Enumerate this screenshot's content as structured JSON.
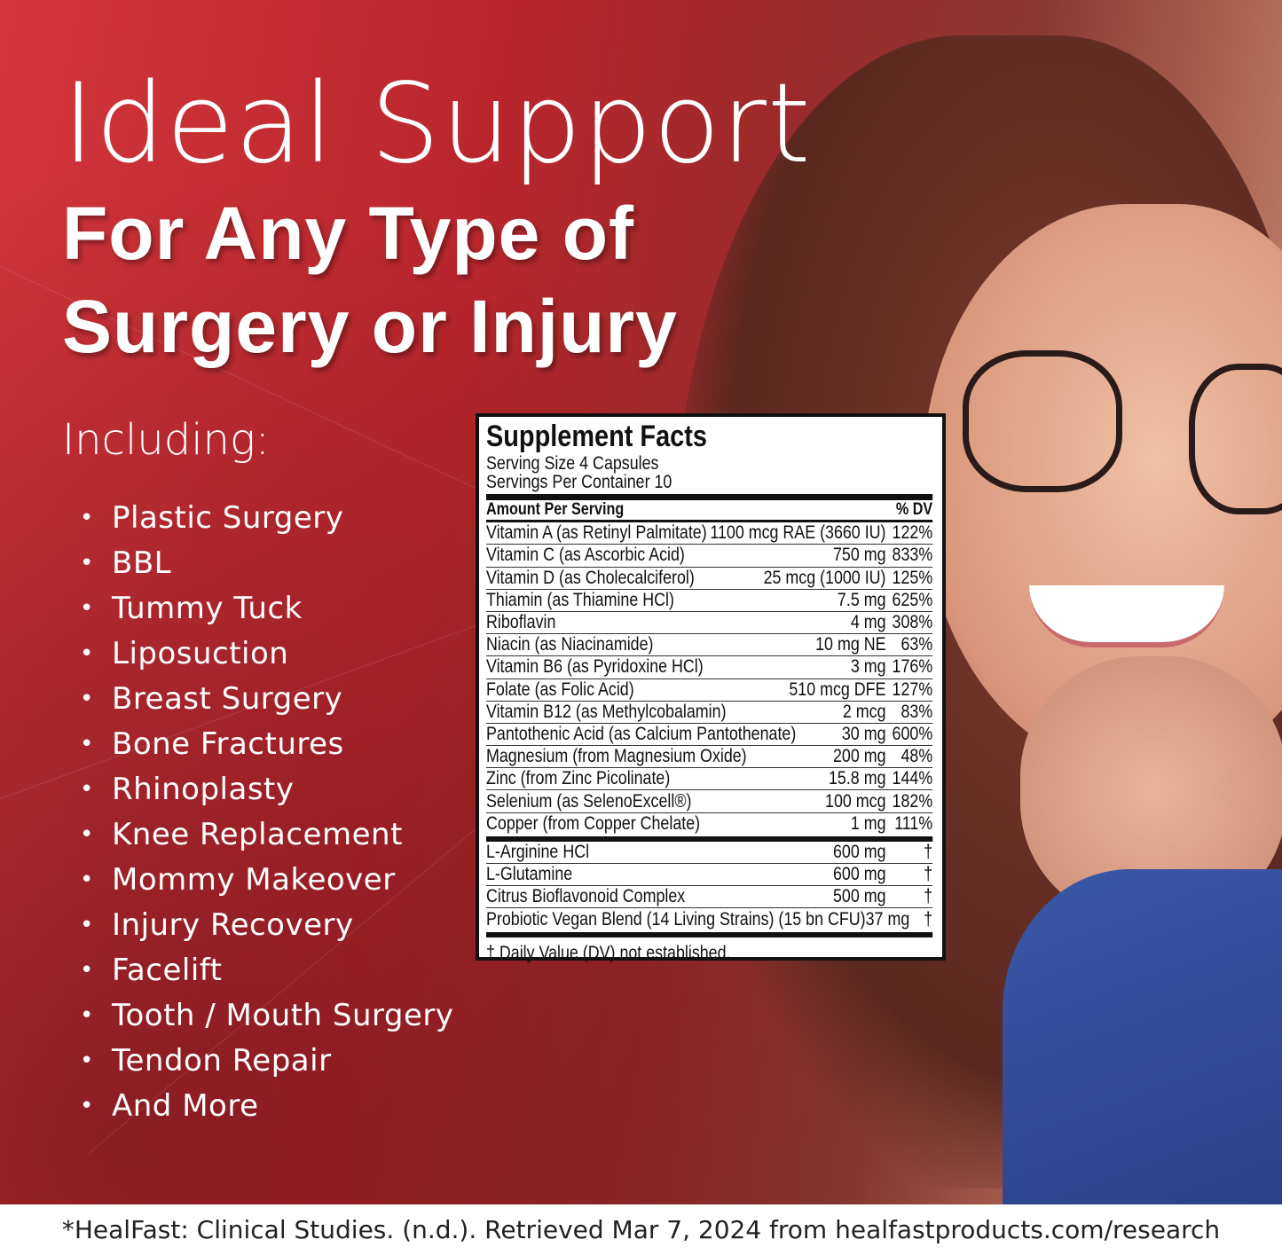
{
  "headline": {
    "line1": "Ideal Support",
    "line2": "For Any Type of",
    "line3": "Surgery or Injury"
  },
  "including_label": "Including:",
  "uses": [
    "Plastic Surgery",
    "BBL",
    "Tummy Tuck",
    "Liposuction",
    "Breast Surgery",
    "Bone Fractures",
    "Rhinoplasty",
    "Knee Replacement",
    "Mommy Makeover",
    "Injury Recovery",
    "Facelift",
    "Tooth / Mouth Surgery",
    "Tendon Repair",
    "And More"
  ],
  "facts": {
    "title": "Supplement Facts",
    "serving_size": "Serving Size 4 Capsules",
    "servings_per_container": "Servings Per Container 10",
    "header_amount": "Amount Per Serving",
    "header_dv": "% DV",
    "nutrients": [
      {
        "name": "Vitamin A (as Retinyl Palmitate)",
        "amount": "1100 mcg RAE (3660 IU)",
        "dv": "122%"
      },
      {
        "name": "Vitamin C (as Ascorbic Acid)",
        "amount": "750 mg",
        "dv": "833%"
      },
      {
        "name": "Vitamin D (as Cholecalciferol)",
        "amount": "25 mcg (1000 IU)",
        "dv": "125%"
      },
      {
        "name": "Thiamin (as Thiamine HCl)",
        "amount": "7.5 mg",
        "dv": "625%"
      },
      {
        "name": "Riboflavin",
        "amount": "4 mg",
        "dv": "308%"
      },
      {
        "name": "Niacin (as Niacinamide)",
        "amount": "10 mg NE",
        "dv": "63%"
      },
      {
        "name": "Vitamin B6 (as Pyridoxine HCl)",
        "amount": "3 mg",
        "dv": "176%"
      },
      {
        "name": "Folate (as Folic Acid)",
        "amount": "510 mcg DFE",
        "dv": "127%"
      },
      {
        "name": "Vitamin B12 (as Methylcobalamin)",
        "amount": "2 mcg",
        "dv": "83%"
      },
      {
        "name": "Pantothenic Acid (as Calcium Pantothenate)",
        "amount": "30 mg",
        "dv": "600%"
      },
      {
        "name": "Magnesium (from Magnesium Oxide)",
        "amount": "200 mg",
        "dv": "48%"
      },
      {
        "name": "Zinc (from Zinc Picolinate)",
        "amount": "15.8 mg",
        "dv": "144%"
      },
      {
        "name": "Selenium (as SelenoExcell®)",
        "amount": "100 mcg",
        "dv": "182%"
      },
      {
        "name": "Copper (from Copper Chelate)",
        "amount": "1 mg",
        "dv": "111%"
      }
    ],
    "other": [
      {
        "name": "L-Arginine HCl",
        "amount": "600 mg",
        "dv": "†"
      },
      {
        "name": "L-Glutamine",
        "amount": "600 mg",
        "dv": "†"
      },
      {
        "name": "Citrus Bioflavonoid Complex",
        "amount": "500 mg",
        "dv": "†"
      },
      {
        "name": "Probiotic Vegan Blend (14 Living Strains) (15 bn CFU)",
        "amount": "37 mg",
        "dv": "†"
      }
    ],
    "footnote": "† Daily Value (DV) not established."
  },
  "footer": "*HealFast: Clinical Studies. (n.d.). Retrieved Mar 7, 2024 from healfastproducts.com/research",
  "colors": {
    "brand_red": "#c42f33",
    "footer_bg": "#ffffff"
  }
}
